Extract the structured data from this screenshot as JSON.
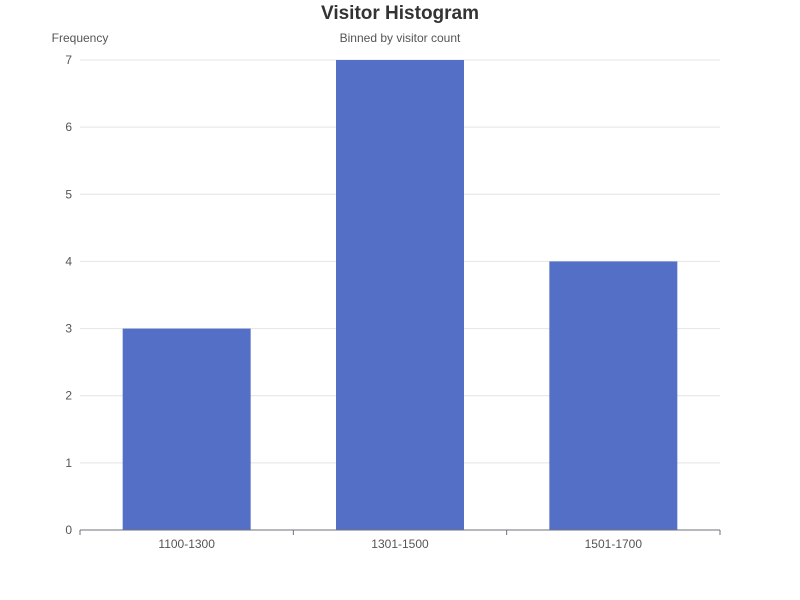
{
  "chart_data": {
    "type": "bar",
    "title": "Visitor Histogram",
    "subtitle": "Binned by visitor count",
    "ylabel": "Frequency",
    "xlabel": "",
    "categories": [
      "1100-1300",
      "1301-1500",
      "1501-1700"
    ],
    "values": [
      3,
      7,
      4
    ],
    "ylim": [
      0,
      7
    ],
    "yticks": [
      "0",
      "1",
      "2",
      "3",
      "4",
      "5",
      "6",
      "7"
    ],
    "grid": true,
    "legend": "none",
    "colors": {
      "bar": "#5470c6",
      "grid": "#e4e4e4",
      "axis": "#6e7079",
      "text": "#555555",
      "title": "#333333"
    }
  }
}
